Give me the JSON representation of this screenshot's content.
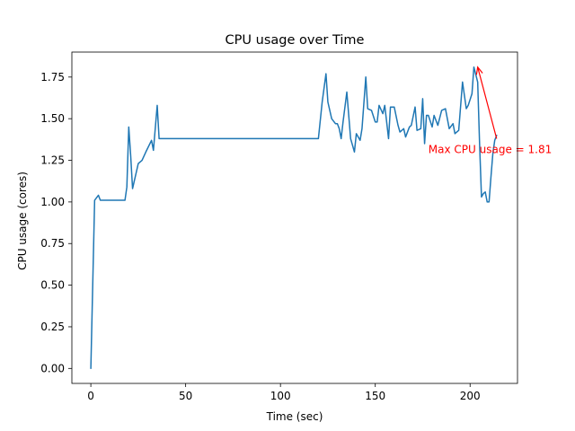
{
  "chart_data": {
    "type": "line",
    "title": "CPU usage over Time",
    "xlabel": "Time (sec)",
    "ylabel": "CPU usage (cores)",
    "xlim": [
      -10,
      225
    ],
    "ylim": [
      -0.09,
      1.9
    ],
    "x_ticks": [
      0,
      50,
      100,
      150,
      200
    ],
    "y_ticks": [
      0.0,
      0.25,
      0.5,
      0.75,
      1.0,
      1.25,
      1.5,
      1.75
    ],
    "x_tick_labels": [
      "0",
      "50",
      "100",
      "150",
      "200"
    ],
    "y_tick_labels": [
      "0.00",
      "0.25",
      "0.50",
      "0.75",
      "1.00",
      "1.25",
      "1.50",
      "1.75"
    ],
    "grid": false,
    "series": [
      {
        "color": "#1f77b4",
        "x": [
          0,
          2,
          4,
          5,
          12,
          18,
          19,
          20,
          21,
          22,
          23,
          25,
          27,
          29,
          32,
          33,
          35,
          36,
          120,
          122,
          124,
          125,
          127,
          129,
          130,
          131,
          132,
          133,
          135,
          137,
          138,
          139,
          140,
          142,
          143,
          145,
          146,
          148,
          150,
          151,
          152,
          154,
          155,
          157,
          158,
          160,
          162,
          163,
          165,
          166,
          168,
          169,
          171,
          172,
          174,
          175,
          176,
          177,
          178,
          180,
          181,
          183,
          185,
          187,
          189,
          191,
          192,
          194,
          196,
          198,
          199,
          201,
          202,
          204,
          205,
          206,
          207,
          208,
          209,
          210,
          211,
          212,
          213,
          214
        ],
        "y": [
          0.0,
          1.01,
          1.04,
          1.01,
          1.01,
          1.01,
          1.09,
          1.45,
          1.28,
          1.08,
          1.13,
          1.23,
          1.25,
          1.3,
          1.37,
          1.31,
          1.58,
          1.38,
          1.38,
          1.6,
          1.77,
          1.6,
          1.5,
          1.47,
          1.47,
          1.44,
          1.38,
          1.48,
          1.66,
          1.38,
          1.34,
          1.3,
          1.41,
          1.37,
          1.44,
          1.75,
          1.56,
          1.55,
          1.48,
          1.48,
          1.58,
          1.53,
          1.58,
          1.38,
          1.57,
          1.57,
          1.46,
          1.42,
          1.44,
          1.39,
          1.45,
          1.46,
          1.57,
          1.43,
          1.44,
          1.62,
          1.35,
          1.52,
          1.52,
          1.45,
          1.52,
          1.46,
          1.55,
          1.56,
          1.44,
          1.47,
          1.41,
          1.43,
          1.72,
          1.56,
          1.58,
          1.65,
          1.81,
          1.72,
          1.35,
          1.03,
          1.05,
          1.06,
          1.0,
          1.0,
          1.15,
          1.29,
          1.37,
          1.4
        ]
      }
    ],
    "annotations": [
      {
        "text": "Max CPU usage = 1.81",
        "color": "#ff0000",
        "arrow_to": [
          204,
          1.81
        ],
        "text_at": [
          214,
          1.38
        ]
      }
    ]
  }
}
